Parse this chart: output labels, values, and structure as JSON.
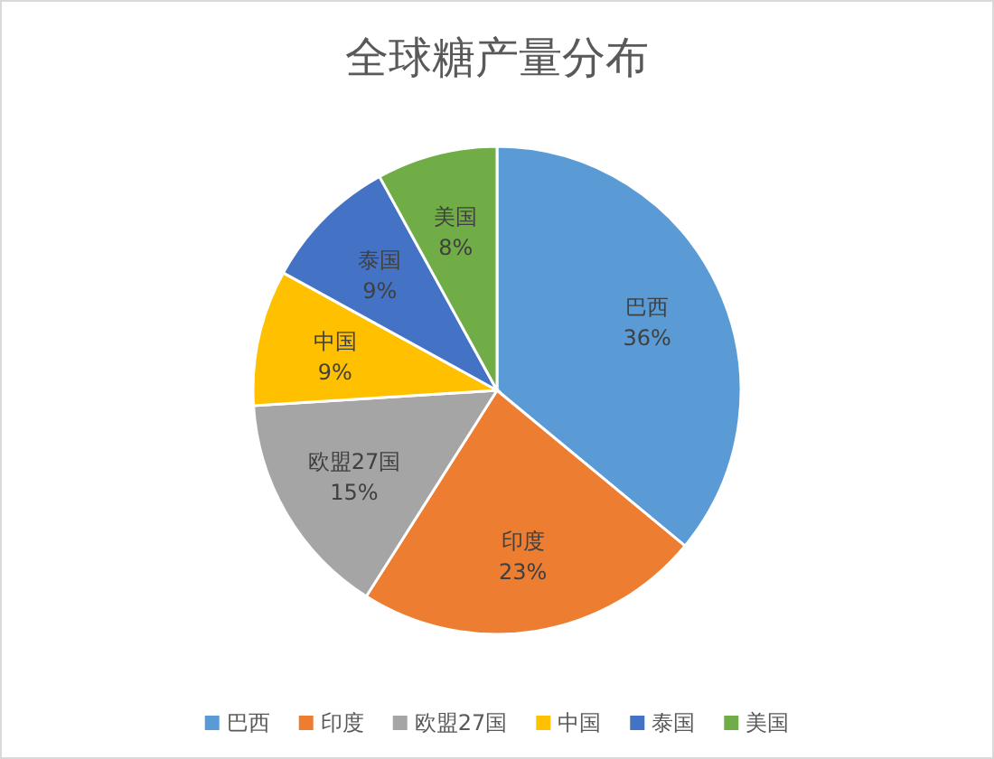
{
  "chart_data": {
    "type": "pie",
    "title": "全球糖产量分布",
    "categories": [
      "巴西",
      "印度",
      "欧盟27国",
      "中国",
      "泰国",
      "美国"
    ],
    "values": [
      36,
      23,
      15,
      9,
      9,
      8
    ],
    "colors": [
      "#5b9bd5",
      "#ed7d31",
      "#a5a5a5",
      "#ffc000",
      "#4472c4",
      "#70ad47"
    ],
    "value_labels": [
      "36%",
      "23%",
      "15%",
      "9%",
      "9%",
      "8%"
    ],
    "legend": "bottom"
  }
}
